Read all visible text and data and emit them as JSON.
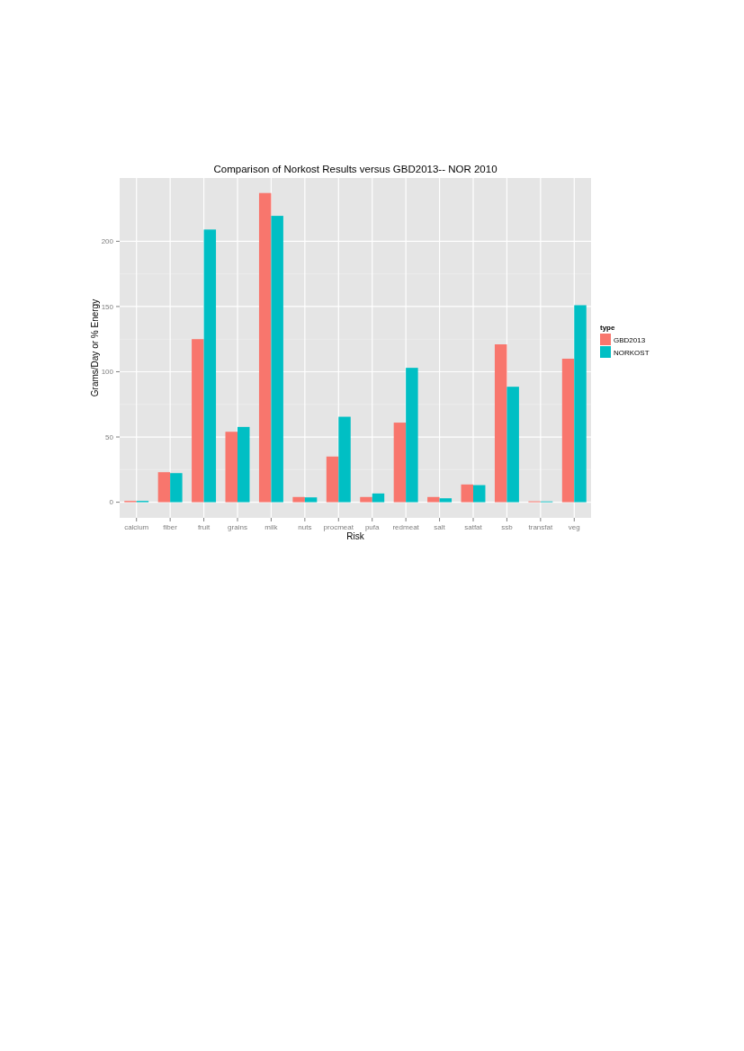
{
  "chart_data": {
    "type": "bar",
    "title": "Comparison of Norkost Results versus GBD2013-- NOR 2010",
    "xlabel": "Risk",
    "ylabel": "Grams/Day or % Energy",
    "legend_title": "type",
    "categories": [
      "calcium",
      "fiber",
      "fruit",
      "grains",
      "milk",
      "nuts",
      "procmeat",
      "pufa",
      "redmeat",
      "salt",
      "satfat",
      "ssb",
      "transfat",
      "veg"
    ],
    "series": [
      {
        "name": "GBD2013",
        "color": "#f8766d",
        "values": [
          1,
          23,
          125,
          54,
          237,
          4,
          35,
          4,
          61,
          4,
          13.6,
          121,
          0.7,
          110
        ]
      },
      {
        "name": "NORKOST",
        "color": "#00bfc4",
        "values": [
          1,
          22.3,
          209,
          57.7,
          219.5,
          3.7,
          65.5,
          6.7,
          103,
          3,
          13.1,
          88.5,
          0.6,
          151
        ]
      }
    ],
    "ylim": [
      -12,
      248.5
    ],
    "yticks": [
      0,
      50,
      100,
      150,
      200
    ],
    "grid": true,
    "legend": "right"
  }
}
